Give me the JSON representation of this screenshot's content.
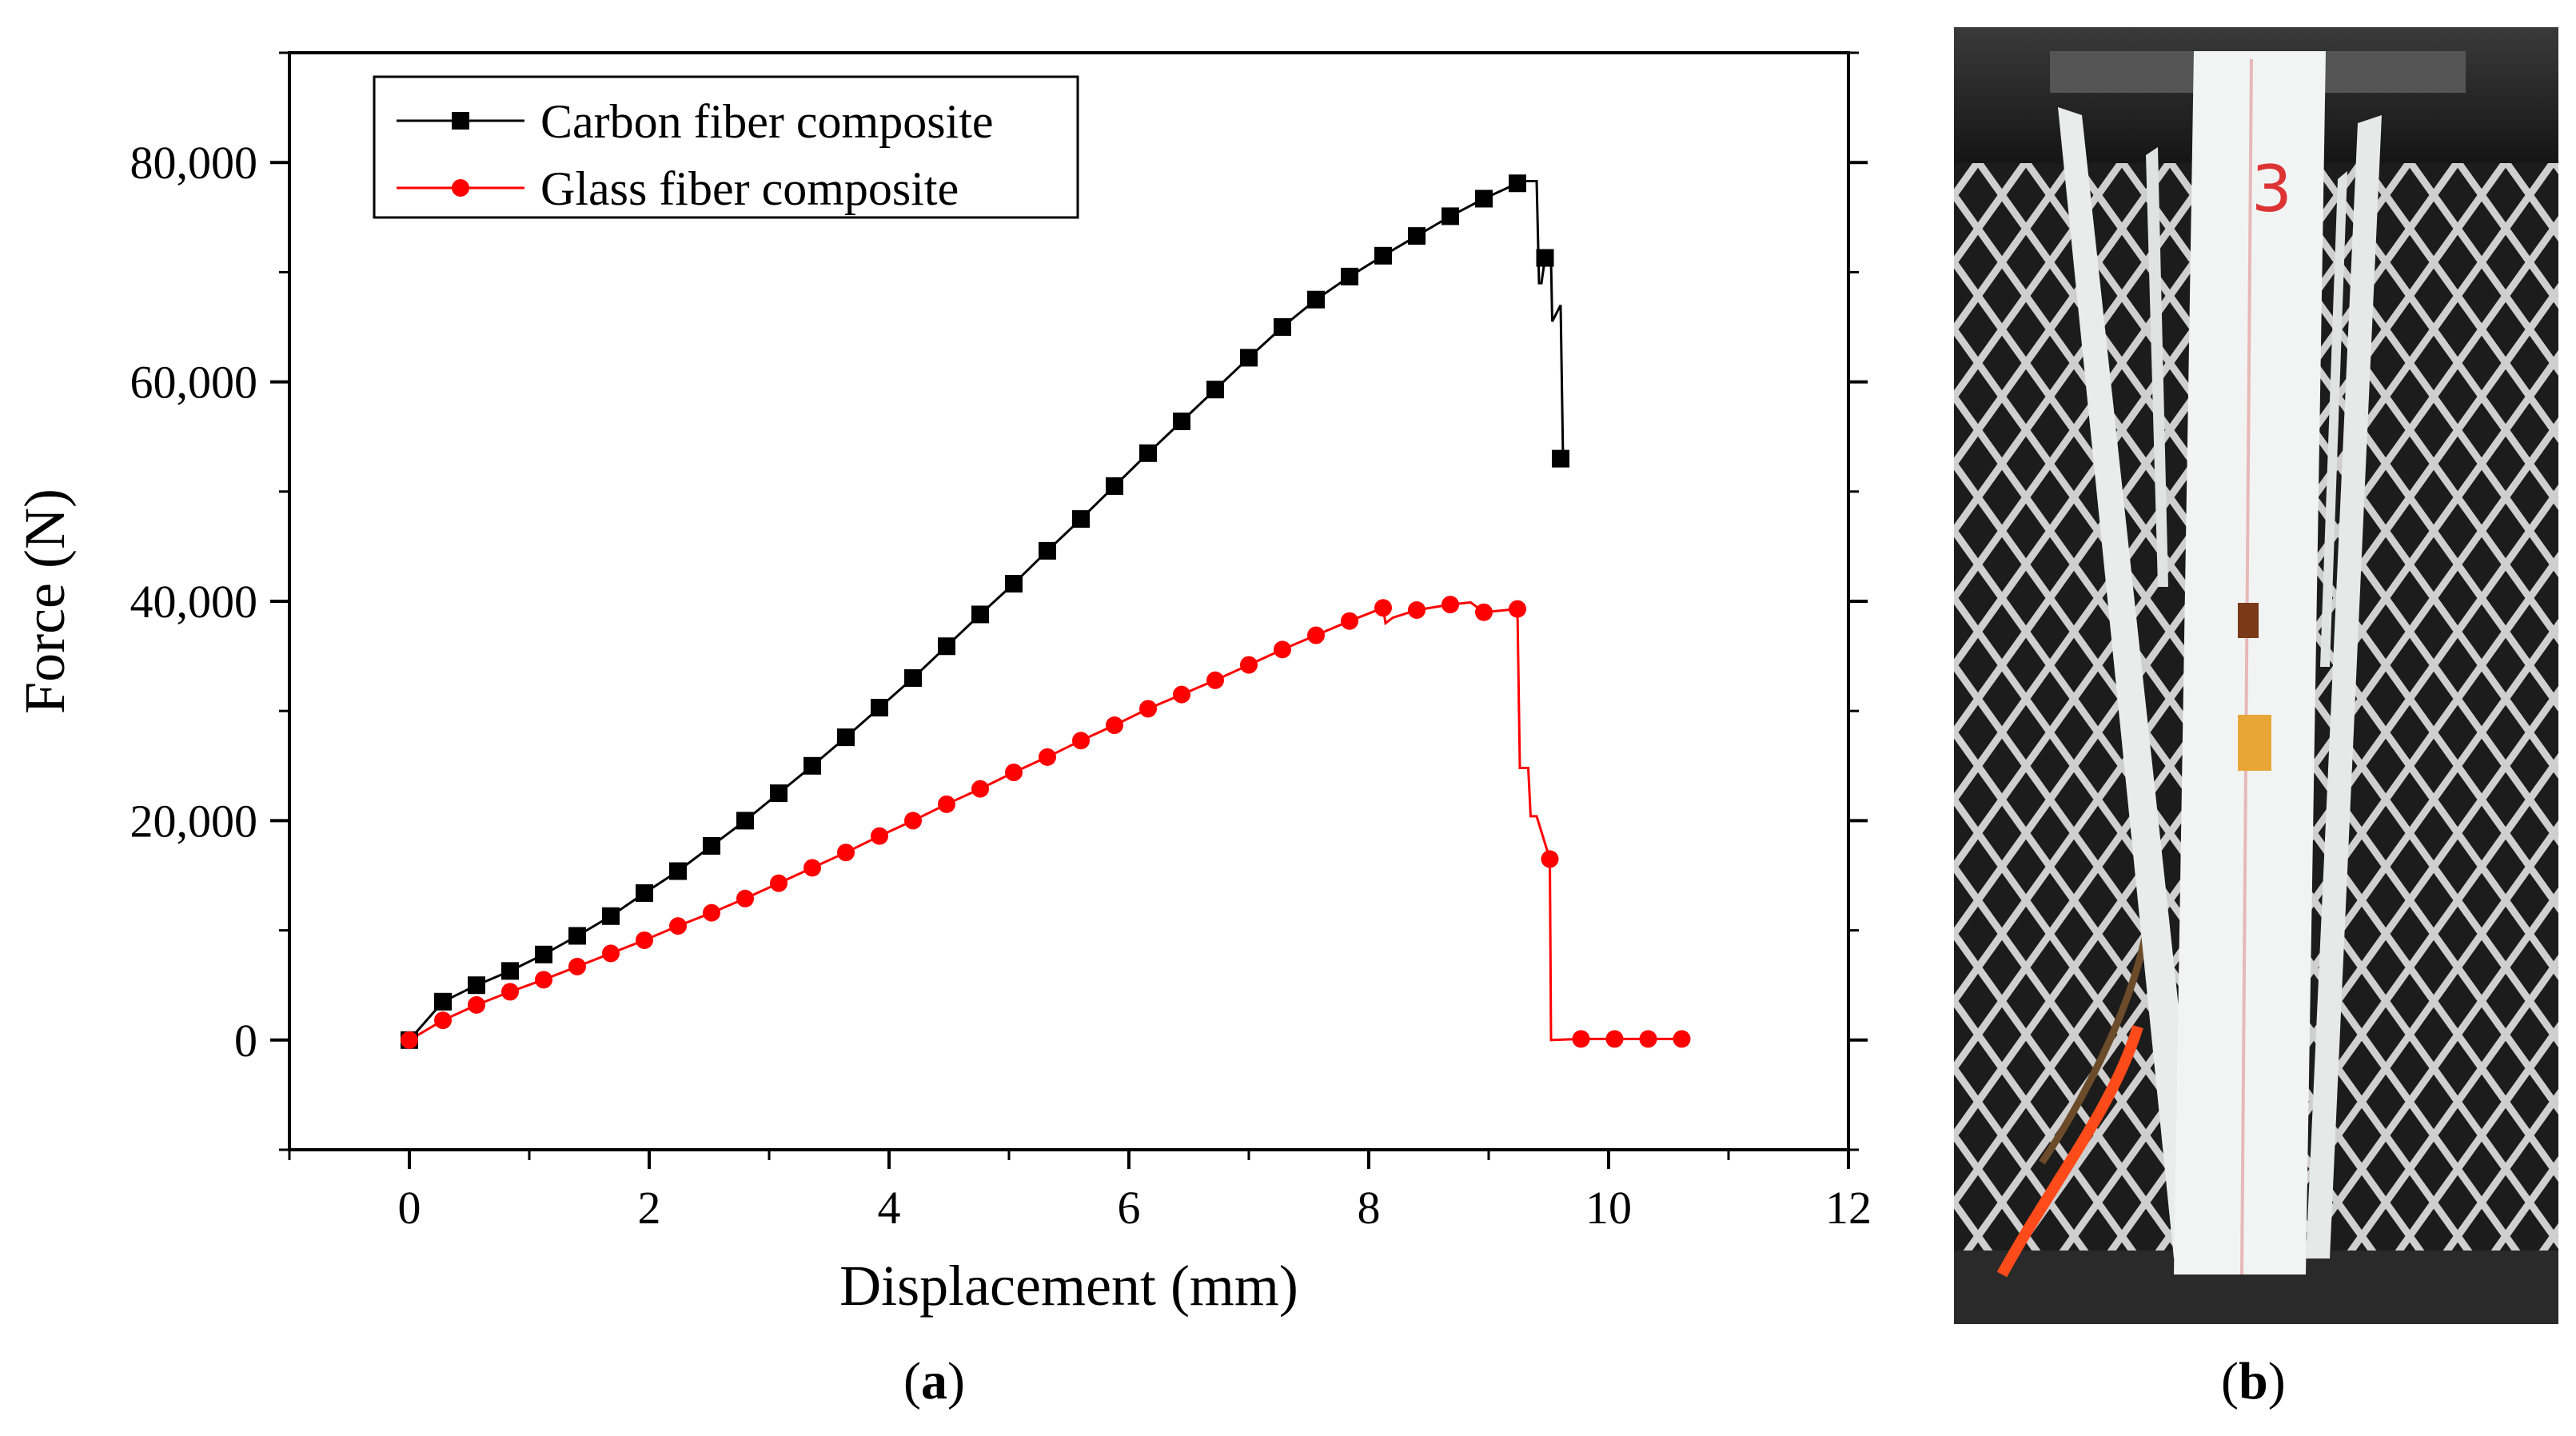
{
  "chart_data": {
    "type": "line",
    "xlabel": "Displacement (mm)",
    "ylabel": "Force (N)",
    "xlim": [
      -1,
      12
    ],
    "ylim": [
      -10000,
      90000
    ],
    "xticks": [
      0,
      2,
      4,
      6,
      8,
      10,
      12
    ],
    "yticks": [
      0,
      20000,
      40000,
      60000,
      80000
    ],
    "ytick_labels": [
      "0",
      "20,000",
      "40,000",
      "60,000",
      "80,000"
    ],
    "grid": false,
    "legend_position": "top-left",
    "series": [
      {
        "name": "Carbon fiber composite",
        "color": "#000000",
        "marker": "square",
        "markers": [
          [
            0,
            0
          ],
          [
            0.28,
            3500
          ],
          [
            0.56,
            5000
          ],
          [
            0.84,
            6300
          ],
          [
            1.12,
            7800
          ],
          [
            1.4,
            9500
          ],
          [
            1.68,
            11300
          ],
          [
            1.96,
            13400
          ],
          [
            2.24,
            15400
          ],
          [
            2.52,
            17700
          ],
          [
            2.8,
            20000
          ],
          [
            3.08,
            22500
          ],
          [
            3.36,
            25000
          ],
          [
            3.64,
            27600
          ],
          [
            3.92,
            30300
          ],
          [
            4.2,
            33000
          ],
          [
            4.48,
            35900
          ],
          [
            4.76,
            38800
          ],
          [
            5.04,
            41600
          ],
          [
            5.32,
            44600
          ],
          [
            5.6,
            47500
          ],
          [
            5.88,
            50500
          ],
          [
            6.16,
            53500
          ],
          [
            6.44,
            56400
          ],
          [
            6.72,
            59300
          ],
          [
            7.0,
            62200
          ],
          [
            7.28,
            65000
          ],
          [
            7.56,
            67500
          ],
          [
            7.84,
            69600
          ],
          [
            8.12,
            71500
          ],
          [
            8.4,
            73300
          ],
          [
            8.68,
            75100
          ],
          [
            8.96,
            76700
          ],
          [
            9.24,
            78100
          ],
          [
            9.47,
            71300
          ],
          [
            9.6,
            53000
          ]
        ],
        "path": [
          [
            0,
            0
          ],
          [
            0.28,
            3500
          ],
          [
            0.56,
            5000
          ],
          [
            0.84,
            6300
          ],
          [
            1.12,
            7800
          ],
          [
            1.4,
            9500
          ],
          [
            1.68,
            11300
          ],
          [
            1.96,
            13400
          ],
          [
            2.24,
            15400
          ],
          [
            2.52,
            17700
          ],
          [
            2.8,
            20000
          ],
          [
            3.08,
            22500
          ],
          [
            3.36,
            25000
          ],
          [
            3.64,
            27600
          ],
          [
            3.92,
            30300
          ],
          [
            4.2,
            33000
          ],
          [
            4.48,
            35900
          ],
          [
            4.76,
            38800
          ],
          [
            5.04,
            41600
          ],
          [
            5.32,
            44600
          ],
          [
            5.6,
            47500
          ],
          [
            5.88,
            50500
          ],
          [
            6.16,
            53500
          ],
          [
            6.44,
            56400
          ],
          [
            6.72,
            59300
          ],
          [
            7.0,
            62200
          ],
          [
            7.28,
            65000
          ],
          [
            7.56,
            67500
          ],
          [
            7.84,
            69600
          ],
          [
            8.12,
            71500
          ],
          [
            8.4,
            73300
          ],
          [
            8.68,
            75100
          ],
          [
            8.96,
            76700
          ],
          [
            9.24,
            78100
          ],
          [
            9.28,
            78300
          ],
          [
            9.4,
            78300
          ],
          [
            9.42,
            69000
          ],
          [
            9.44,
            69000
          ],
          [
            9.47,
            71300
          ],
          [
            9.52,
            71000
          ],
          [
            9.53,
            65500
          ],
          [
            9.6,
            67000
          ],
          [
            9.62,
            53000
          ]
        ]
      },
      {
        "name": "Glass fiber composite",
        "color": "#ff0000",
        "marker": "circle",
        "markers": [
          [
            0,
            0
          ],
          [
            0.28,
            1800
          ],
          [
            0.56,
            3200
          ],
          [
            0.84,
            4400
          ],
          [
            1.12,
            5500
          ],
          [
            1.4,
            6700
          ],
          [
            1.68,
            7900
          ],
          [
            1.96,
            9100
          ],
          [
            2.24,
            10400
          ],
          [
            2.52,
            11600
          ],
          [
            2.8,
            12900
          ],
          [
            3.08,
            14300
          ],
          [
            3.36,
            15700
          ],
          [
            3.64,
            17100
          ],
          [
            3.92,
            18600
          ],
          [
            4.2,
            20000
          ],
          [
            4.48,
            21500
          ],
          [
            4.76,
            22900
          ],
          [
            5.04,
            24400
          ],
          [
            5.32,
            25800
          ],
          [
            5.6,
            27300
          ],
          [
            5.88,
            28700
          ],
          [
            6.16,
            30200
          ],
          [
            6.44,
            31500
          ],
          [
            6.72,
            32800
          ],
          [
            7.0,
            34200
          ],
          [
            7.28,
            35600
          ],
          [
            7.56,
            36900
          ],
          [
            7.84,
            38200
          ],
          [
            8.12,
            39400
          ],
          [
            8.4,
            39200
          ],
          [
            8.68,
            39700
          ],
          [
            8.96,
            39000
          ],
          [
            9.24,
            39300
          ],
          [
            9.51,
            16500
          ],
          [
            9.77,
            100
          ],
          [
            10.05,
            100
          ],
          [
            10.33,
            100
          ],
          [
            10.61,
            100
          ]
        ],
        "path": [
          [
            0,
            0
          ],
          [
            0.28,
            1800
          ],
          [
            0.56,
            3200
          ],
          [
            0.84,
            4400
          ],
          [
            1.12,
            5500
          ],
          [
            1.4,
            6700
          ],
          [
            1.68,
            7900
          ],
          [
            1.96,
            9100
          ],
          [
            2.24,
            10400
          ],
          [
            2.52,
            11600
          ],
          [
            2.8,
            12900
          ],
          [
            3.08,
            14300
          ],
          [
            3.36,
            15700
          ],
          [
            3.64,
            17100
          ],
          [
            3.92,
            18600
          ],
          [
            4.2,
            20000
          ],
          [
            4.48,
            21500
          ],
          [
            4.76,
            22900
          ],
          [
            5.04,
            24400
          ],
          [
            5.32,
            25800
          ],
          [
            5.6,
            27300
          ],
          [
            5.88,
            28700
          ],
          [
            6.16,
            30200
          ],
          [
            6.44,
            31500
          ],
          [
            6.72,
            32800
          ],
          [
            7.0,
            34200
          ],
          [
            7.28,
            35600
          ],
          [
            7.56,
            36900
          ],
          [
            7.84,
            38200
          ],
          [
            8.12,
            39400
          ],
          [
            8.14,
            38000
          ],
          [
            8.2,
            38500
          ],
          [
            8.4,
            39200
          ],
          [
            8.68,
            39700
          ],
          [
            8.85,
            39900
          ],
          [
            8.96,
            39000
          ],
          [
            9.24,
            39300
          ],
          [
            9.26,
            24800
          ],
          [
            9.33,
            24800
          ],
          [
            9.35,
            20400
          ],
          [
            9.4,
            20400
          ],
          [
            9.51,
            16500
          ],
          [
            9.52,
            0
          ],
          [
            9.77,
            100
          ],
          [
            10.05,
            100
          ],
          [
            10.33,
            100
          ],
          [
            10.61,
            100
          ]
        ]
      }
    ]
  },
  "panels": {
    "a": "a",
    "b": "b"
  },
  "photo": {
    "subject": "fractured fiber composite specimen",
    "handwritten_mark": "3",
    "colors": {
      "background": "#1c1c1c",
      "mesh": "#cfcfcf",
      "specimen": "#f2f4f3",
      "wire": "#ff4a1a",
      "clamp": "#2a2a2a"
    }
  }
}
